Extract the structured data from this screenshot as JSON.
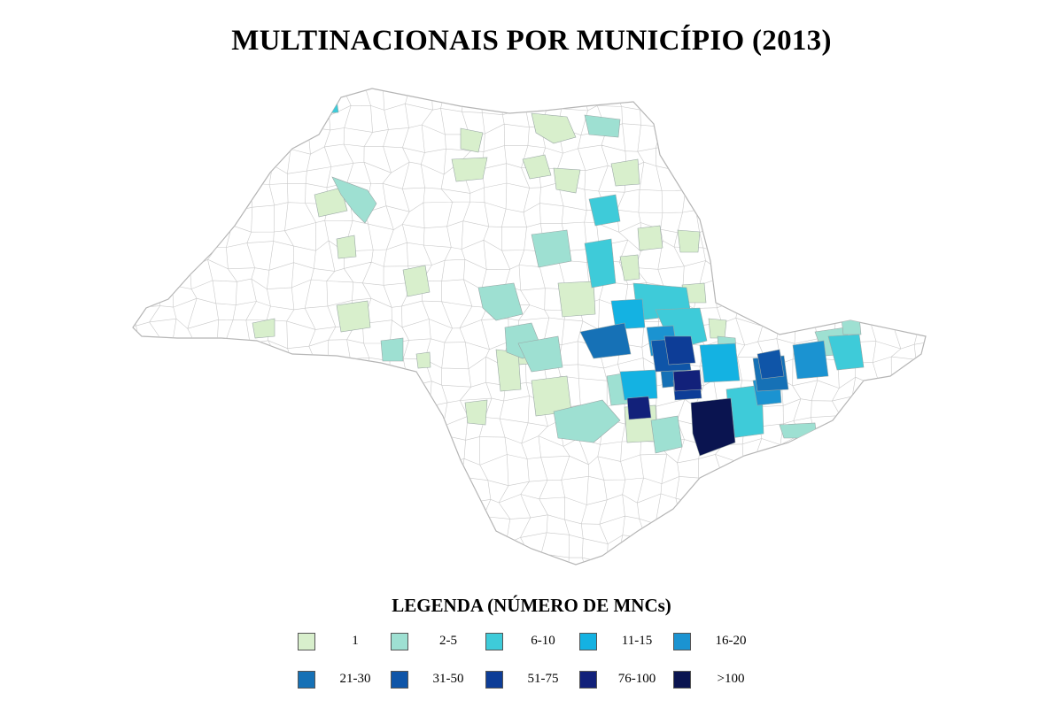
{
  "title": "MULTINACIONAIS POR MUNICÍPIO (2013)",
  "legend": {
    "title": "LEGENDA (NÚMERO DE MNCs)",
    "items": [
      {
        "label": "1",
        "color": "#d8efcc"
      },
      {
        "label": "2-5",
        "color": "#9ee0d2"
      },
      {
        "label": "6-10",
        "color": "#3ecbd9"
      },
      {
        "label": "11-15",
        "color": "#14b2e2"
      },
      {
        "label": "16-20",
        "color": "#1b93d1"
      },
      {
        "label": "21-30",
        "color": "#1671b6"
      },
      {
        "label": "31-50",
        "color": "#0f55a8"
      },
      {
        "label": "51-75",
        "color": "#0d3d97"
      },
      {
        "label": "76-100",
        "color": "#12217a"
      },
      {
        "label": ">100",
        "color": "#0a1450"
      }
    ]
  },
  "map": {
    "region": "São Paulo state municipalities",
    "outline_color": "#c9c9c9",
    "base_fill": "#ffffff"
  }
}
